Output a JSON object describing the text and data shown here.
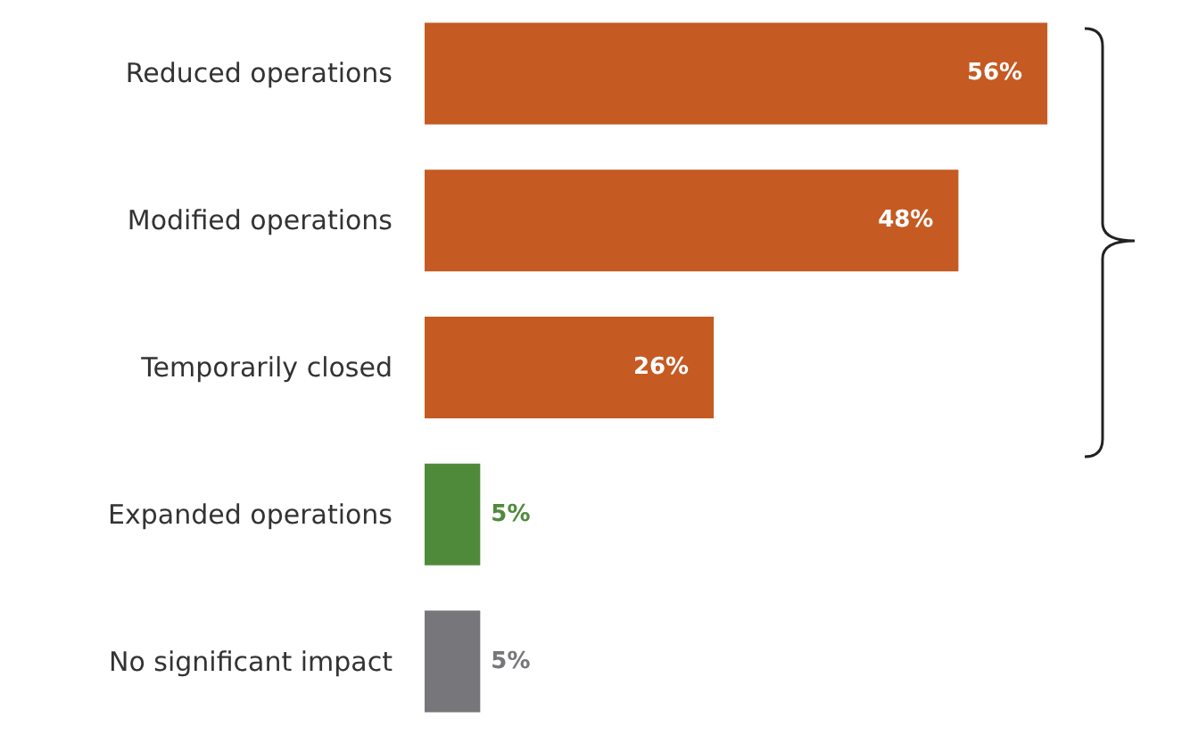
{
  "chart_data": {
    "type": "bar",
    "orientation": "horizontal",
    "categories": [
      "Reduced operations",
      "Modified operations",
      "Temporarily closed",
      "Expanded operations",
      "No significant impact"
    ],
    "values": [
      56,
      48,
      26,
      5,
      5
    ],
    "value_labels": [
      "56%",
      "48%",
      "26%",
      "5%",
      "5%"
    ],
    "colors": [
      "#c55a22",
      "#c55a22",
      "#c55a22",
      "#4f8a3b",
      "#77767a"
    ]
  }
}
